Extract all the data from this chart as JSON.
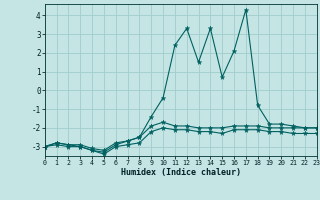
{
  "xlabel": "Humidex (Indice chaleur)",
  "xlim": [
    0,
    23
  ],
  "ylim": [
    -3.5,
    4.6
  ],
  "yticks": [
    -3,
    -2,
    -1,
    0,
    1,
    2,
    3,
    4
  ],
  "xticks": [
    0,
    1,
    2,
    3,
    4,
    5,
    6,
    7,
    8,
    9,
    10,
    11,
    12,
    13,
    14,
    15,
    16,
    17,
    18,
    19,
    20,
    21,
    22,
    23
  ],
  "bg_color": "#c5e5e5",
  "grid_color": "#a0cccc",
  "line_color": "#006060",
  "x": [
    0,
    1,
    2,
    3,
    4,
    5,
    6,
    7,
    8,
    9,
    10,
    11,
    12,
    13,
    14,
    15,
    16,
    17,
    18,
    19,
    20,
    21,
    22,
    23
  ],
  "y_top": [
    -3.0,
    -2.8,
    -2.9,
    -3.0,
    -3.2,
    -3.3,
    -2.9,
    -2.7,
    -2.5,
    -1.4,
    -0.4,
    2.4,
    3.3,
    1.5,
    3.3,
    0.7,
    2.1,
    4.3,
    -0.8,
    -1.8,
    -1.8,
    -1.9,
    -2.0,
    -2.0
  ],
  "y_mid": [
    -3.0,
    -2.8,
    -2.9,
    -2.9,
    -3.1,
    -3.2,
    -2.8,
    -2.7,
    -2.5,
    -1.9,
    -1.7,
    -1.9,
    -1.9,
    -2.0,
    -2.0,
    -2.0,
    -1.9,
    -1.9,
    -1.9,
    -2.0,
    -2.0,
    -2.0,
    -2.0,
    -2.0
  ],
  "y_bot": [
    -3.0,
    -2.9,
    -3.0,
    -3.0,
    -3.2,
    -3.4,
    -3.0,
    -2.9,
    -2.8,
    -2.2,
    -2.0,
    -2.1,
    -2.1,
    -2.2,
    -2.2,
    -2.3,
    -2.1,
    -2.1,
    -2.1,
    -2.2,
    -2.2,
    -2.3,
    -2.3,
    -2.3
  ]
}
